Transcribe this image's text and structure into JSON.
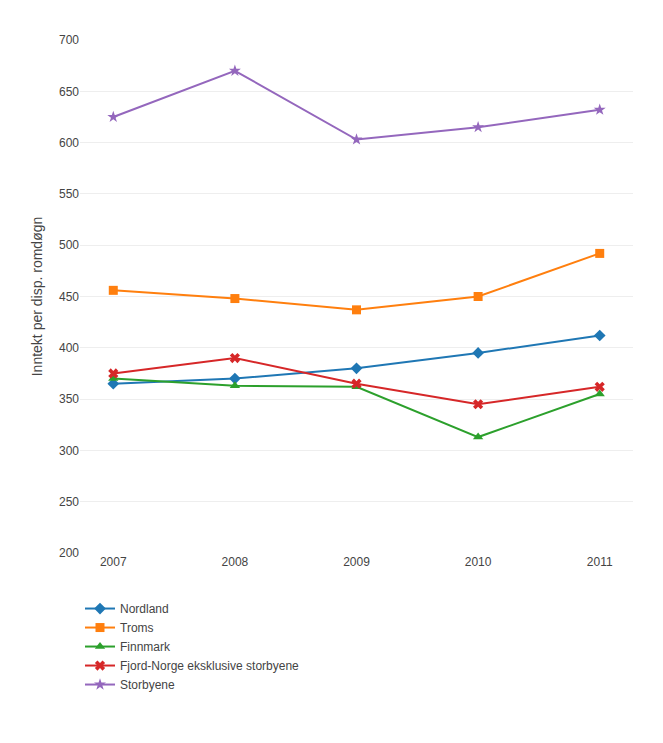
{
  "chart_data": {
    "type": "line",
    "ylabel": "Inntekt per disp. romdøgn",
    "categories": [
      "2007",
      "2008",
      "2009",
      "2010",
      "2011"
    ],
    "series": [
      {
        "name": "Nordland",
        "values": [
          365,
          370,
          380,
          395,
          412
        ],
        "marker": "diamond"
      },
      {
        "name": "Troms",
        "values": [
          456,
          448,
          437,
          450,
          492
        ],
        "marker": "square"
      },
      {
        "name": "Finnmark",
        "values": [
          370,
          363,
          362,
          313,
          355
        ],
        "marker": "triangle-up"
      },
      {
        "name": "Fjord-Norge eksklusive storbyene",
        "values": [
          375,
          390,
          365,
          345,
          362
        ],
        "marker": "x"
      },
      {
        "name": "Storbyene",
        "values": [
          625,
          670,
          603,
          615,
          632
        ],
        "marker": "star"
      }
    ],
    "ylim": [
      200,
      700
    ],
    "yticks": [
      200,
      250,
      300,
      350,
      400,
      450,
      500,
      550,
      600,
      650,
      700
    ],
    "grid": true,
    "legend": "bottom"
  }
}
